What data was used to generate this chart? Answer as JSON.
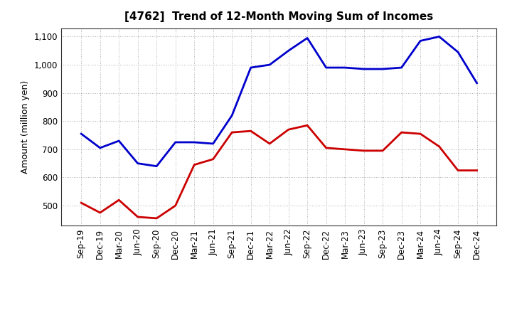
{
  "title": "[4762]  Trend of 12-Month Moving Sum of Incomes",
  "ylabel": "Amount (million yen)",
  "x_labels": [
    "Sep-19",
    "Dec-19",
    "Mar-20",
    "Jun-20",
    "Sep-20",
    "Dec-20",
    "Mar-21",
    "Jun-21",
    "Sep-21",
    "Dec-21",
    "Mar-22",
    "Jun-22",
    "Sep-22",
    "Dec-22",
    "Mar-23",
    "Jun-23",
    "Sep-23",
    "Dec-23",
    "Mar-24",
    "Jun-24",
    "Sep-24",
    "Dec-24"
  ],
  "ordinary_income": [
    755,
    705,
    730,
    650,
    640,
    725,
    725,
    720,
    820,
    990,
    1000,
    1050,
    1095,
    990,
    990,
    985,
    985,
    990,
    1085,
    1100,
    1045,
    935
  ],
  "net_income": [
    510,
    475,
    520,
    460,
    455,
    500,
    645,
    665,
    760,
    765,
    720,
    770,
    785,
    705,
    700,
    695,
    695,
    760,
    755,
    710,
    625,
    625
  ],
  "ordinary_color": "#0000CC",
  "net_color": "#CC0000",
  "ylim_min": 430,
  "ylim_max": 1130,
  "yticks": [
    500,
    600,
    700,
    800,
    900,
    1000,
    1100
  ],
  "background_color": "#FFFFFF",
  "plot_bg_color": "#FFFFFF",
  "grid_color": "#999999",
  "title_fontsize": 11,
  "ylabel_fontsize": 9,
  "tick_fontsize": 8.5,
  "linewidth": 2.0
}
